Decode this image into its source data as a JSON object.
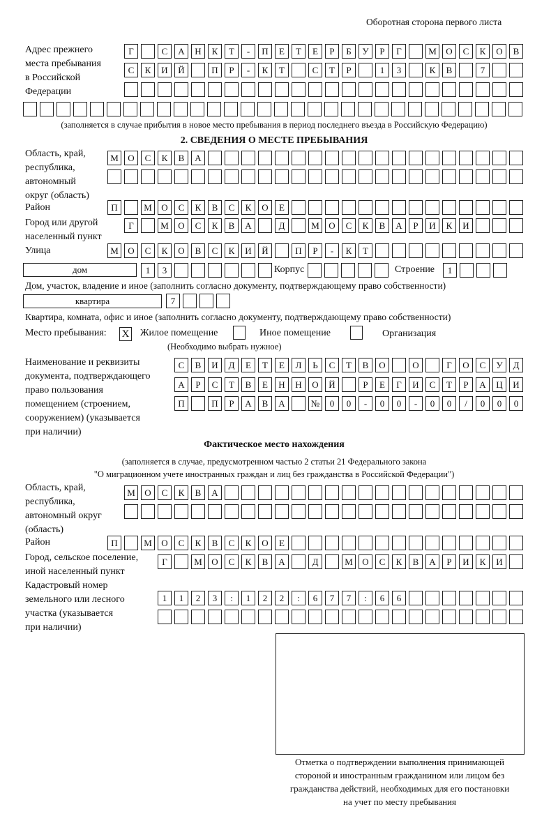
{
  "header": {
    "side_note": "Оборотная сторона первого листа"
  },
  "prev_address": {
    "label": "Адрес прежнего\nместа пребывания\nв Российской\nФедерации",
    "rows": [
      [
        "Г",
        "",
        "С",
        "А",
        "Н",
        "К",
        "Т",
        "-",
        "П",
        "Е",
        "Т",
        "Е",
        "Р",
        "Б",
        "У",
        "Р",
        "Г",
        "",
        "М",
        "О",
        "С",
        "К",
        "О",
        "В"
      ],
      [
        "С",
        "К",
        "И",
        "Й",
        "",
        "П",
        "Р",
        "-",
        "К",
        "Т",
        "",
        "С",
        "Т",
        "Р",
        "",
        "1",
        "3",
        "",
        "К",
        "В",
        "",
        "7",
        "",
        ""
      ],
      [
        "",
        "",
        "",
        "",
        "",
        "",
        "",
        "",
        "",
        "",
        "",
        "",
        "",
        "",
        "",
        "",
        "",
        "",
        "",
        "",
        "",
        "",
        "",
        ""
      ],
      [
        "",
        "",
        "",
        "",
        "",
        "",
        "",
        "",
        "",
        "",
        "",
        "",
        "",
        "",
        "",
        "",
        "",
        "",
        "",
        "",
        "",
        "",
        "",
        "",
        "",
        "",
        "",
        "",
        "",
        ""
      ]
    ],
    "note": "(заполняется в случае прибытия в новое место пребывания в период последнего въезда в Российскую Федерацию)"
  },
  "section2": {
    "title": "2. СВЕДЕНИЯ О МЕСТЕ ПРЕБЫВАНИЯ",
    "region": {
      "label": "Область, край,\nреспублика,\nавтономный\nокруг (область)",
      "rows": [
        [
          "М",
          "О",
          "С",
          "К",
          "В",
          "А",
          "",
          "",
          "",
          "",
          "",
          "",
          "",
          "",
          "",
          "",
          "",
          "",
          "",
          "",
          "",
          "",
          "",
          "",
          ""
        ],
        [
          "",
          "",
          "",
          "",
          "",
          "",
          "",
          "",
          "",
          "",
          "",
          "",
          "",
          "",
          "",
          "",
          "",
          "",
          "",
          "",
          "",
          "",
          "",
          "",
          ""
        ]
      ]
    },
    "district": {
      "label": "Район",
      "cells": [
        "П",
        "",
        "М",
        "О",
        "С",
        "К",
        "В",
        "С",
        "К",
        "О",
        "Е",
        "",
        "",
        "",
        "",
        "",
        "",
        "",
        "",
        "",
        "",
        "",
        "",
        "",
        ""
      ]
    },
    "city": {
      "label": "Город или другой\nнаселенный пункт",
      "cells": [
        "Г",
        "",
        "М",
        "О",
        "С",
        "К",
        "В",
        "А",
        "",
        "Д",
        "",
        "М",
        "О",
        "С",
        "К",
        "В",
        "А",
        "Р",
        "И",
        "К",
        "И",
        "",
        "",
        ""
      ]
    },
    "street": {
      "label": "Улица",
      "cells": [
        "М",
        "О",
        "С",
        "К",
        "О",
        "В",
        "С",
        "К",
        "И",
        "Й",
        "",
        "П",
        "Р",
        "-",
        "К",
        "Т",
        "",
        "",
        "",
        "",
        "",
        "",
        "",
        "",
        ""
      ]
    },
    "house": {
      "type_label": "дом",
      "cells": [
        "1",
        "3",
        "",
        "",
        "",
        "",
        "",
        ""
      ],
      "korpus_label": "Корпус",
      "korpus_cells": [
        "",
        "",
        "",
        "",
        ""
      ],
      "stroenie_label": "Строение",
      "stroenie_cells": [
        "1",
        "",
        "",
        ""
      ],
      "note": "Дом, участок, владение и иное (заполнить согласно документу, подтверждающему право собственности)"
    },
    "apartment": {
      "type_label": "квартира",
      "cells": [
        "7",
        "",
        "",
        ""
      ],
      "note": "Квартира, комната, офис и иное (заполнить согласно документу, подтверждающему право собственности)"
    },
    "stay_place": {
      "label": "Место пребывания:",
      "options": [
        {
          "label": "Жилое помещение",
          "mark": "X",
          "checked": true
        },
        {
          "label": "Иное помещение",
          "mark": "",
          "checked": false
        },
        {
          "label": "Организация",
          "mark": "",
          "checked": false
        }
      ],
      "hint": "(Необходимо выбрать нужное)"
    },
    "document": {
      "label": "Наименование и реквизиты\nдокумента, подтверждающего\nправо пользования\nпомещением (строением,\nсооружением) (указывается\nпри наличии)",
      "rows": [
        [
          "С",
          "В",
          "И",
          "Д",
          "Е",
          "Т",
          "Е",
          "Л",
          "Ь",
          "С",
          "Т",
          "В",
          "О",
          "",
          "О",
          "",
          "Г",
          "О",
          "С",
          "У",
          "Д"
        ],
        [
          "А",
          "Р",
          "С",
          "Т",
          "В",
          "Е",
          "Н",
          "Н",
          "О",
          "Й",
          "",
          "Р",
          "Е",
          "Г",
          "И",
          "С",
          "Т",
          "Р",
          "А",
          "Ц",
          "И"
        ],
        [
          "П",
          "",
          "П",
          "Р",
          "А",
          "В",
          "А",
          "",
          "№",
          "0",
          "0",
          "-",
          "0",
          "0",
          "-",
          "0",
          "0",
          "/",
          "0",
          "0",
          "0"
        ]
      ]
    }
  },
  "actual": {
    "title": "Фактическое место нахождения",
    "note_line1": "(заполняется в случае, предусмотренном частью 2 статьи 21 Федерального закона",
    "note_line2": "\"О миграционном учете иностранных граждан и лиц без гражданства в Российской Федерации\")",
    "region": {
      "label": "Область, край,\nреспублика,\nавтономный округ\n(область)",
      "rows": [
        [
          "М",
          "О",
          "С",
          "К",
          "В",
          "А",
          "",
          "",
          "",
          "",
          "",
          "",
          "",
          "",
          "",
          "",
          "",
          "",
          "",
          "",
          "",
          "",
          "",
          ""
        ],
        [
          "",
          "",
          "",
          "",
          "",
          "",
          "",
          "",
          "",
          "",
          "",
          "",
          "",
          "",
          "",
          "",
          "",
          "",
          "",
          "",
          "",
          "",
          "",
          ""
        ]
      ]
    },
    "district": {
      "label": "Район",
      "cells": [
        "П",
        "",
        "М",
        "О",
        "С",
        "К",
        "В",
        "С",
        "К",
        "О",
        "Е",
        "",
        "",
        "",
        "",
        "",
        "",
        "",
        "",
        "",
        "",
        "",
        "",
        "",
        ""
      ]
    },
    "city": {
      "label": "Город, сельское поселение,\nиной населенный пункт",
      "cells": [
        "Г",
        "",
        "М",
        "О",
        "С",
        "К",
        "В",
        "А",
        "",
        "Д",
        "",
        "М",
        "О",
        "С",
        "К",
        "В",
        "А",
        "Р",
        "И",
        "К",
        "И",
        ""
      ]
    },
    "cadastral": {
      "label": "Кадастровый номер\nземельного или лесного\nучастка (указывается\nпри наличии)",
      "rows": [
        [
          "1",
          "1",
          "2",
          "3",
          ":",
          "1",
          "2",
          "2",
          ":",
          "6",
          "7",
          "7",
          ":",
          "6",
          "6",
          "",
          "",
          "",
          "",
          "",
          "",
          ""
        ],
        [
          "",
          "",
          "",
          "",
          "",
          "",
          "",
          "",
          "",
          "",
          "",
          "",
          "",
          "",
          "",
          "",
          "",
          "",
          "",
          "",
          "",
          ""
        ]
      ]
    }
  },
  "stamp": {
    "caption": "Отметка о подтверждении выполнения принимающей\nстороной и иностранным гражданином или лицом без\nгражданства действий, необходимых для его постановки\nна учет по месту пребывания"
  }
}
